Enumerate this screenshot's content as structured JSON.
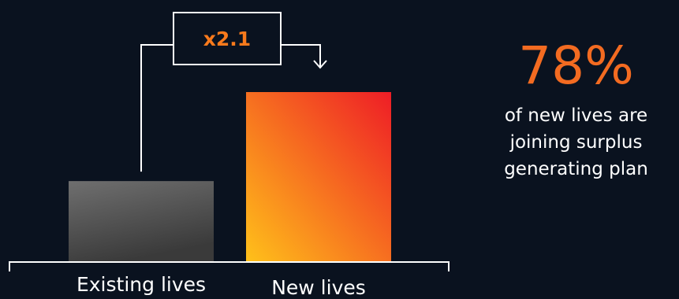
{
  "chart_data": {
    "type": "bar",
    "categories": [
      "Existing lives",
      "New lives"
    ],
    "values": [
      1,
      2.1
    ],
    "title": "",
    "xlabel": "",
    "ylabel": "",
    "ylim": [
      0,
      2.1
    ],
    "grid": false,
    "annotations": [
      {
        "text": "x2.1",
        "from": "Existing lives",
        "to": "New lives"
      }
    ]
  },
  "stat": {
    "value": "78%",
    "caption": "of new lives are joining surplus generating plan"
  },
  "colors": {
    "background": "#0a121f",
    "existing_bar_top": "#6f6f6f",
    "existing_bar_bottom": "#3a3a3a",
    "new_bar_light": "#ffc11a",
    "new_bar_dark": "#ee1d26",
    "accent": "#f36b21",
    "line": "#ffffff"
  }
}
